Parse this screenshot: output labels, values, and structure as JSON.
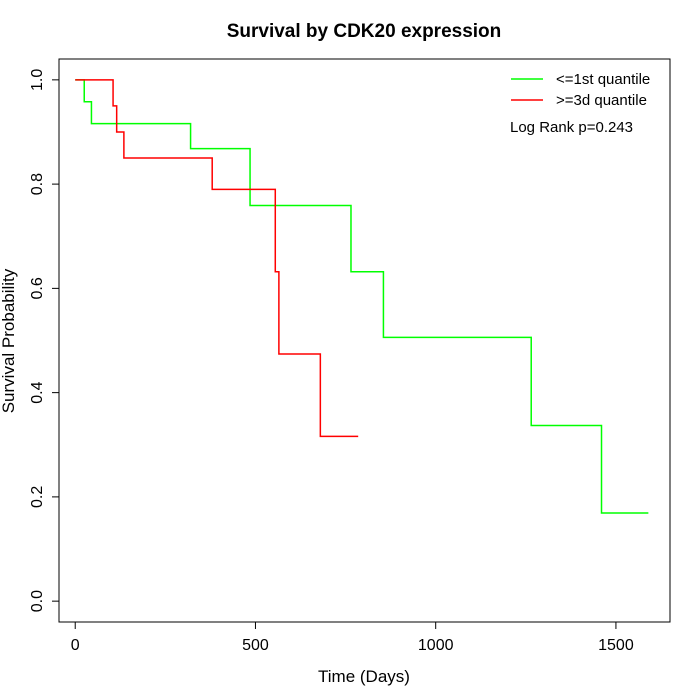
{
  "chart_data": {
    "type": "line",
    "title": "Survival by CDK20 expression",
    "xlabel": "Time (Days)",
    "ylabel": "Survival Probability",
    "xlim": [
      -45,
      1650
    ],
    "ylim": [
      -0.04,
      1.04
    ],
    "x_ticks": [
      0,
      500,
      1000,
      1500
    ],
    "x_tick_labels": [
      "0",
      "500",
      "1000",
      "1500"
    ],
    "y_ticks": [
      0.0,
      0.2,
      0.4,
      0.6,
      0.8,
      1.0
    ],
    "y_tick_labels": [
      "0.0",
      "0.2",
      "0.4",
      "0.6",
      "0.8",
      "1.0"
    ],
    "grid": false,
    "legend_position": "top-right",
    "annotation": "Log Rank p=0.243",
    "series": [
      {
        "name": "<=1st quantile",
        "color": "#00ff00",
        "step": true,
        "x": [
          0,
          25,
          45,
          320,
          485,
          765,
          855,
          1265,
          1460,
          1590
        ],
        "y": [
          1.0,
          0.958,
          0.916,
          0.868,
          0.759,
          0.632,
          0.506,
          0.337,
          0.169,
          0.169
        ]
      },
      {
        "name": ">=3d quantile",
        "color": "#ff0000",
        "step": true,
        "x": [
          0,
          105,
          115,
          135,
          380,
          555,
          565,
          680,
          785
        ],
        "y": [
          1.0,
          0.95,
          0.9,
          0.85,
          0.79,
          0.632,
          0.474,
          0.316,
          0.316
        ]
      }
    ]
  }
}
